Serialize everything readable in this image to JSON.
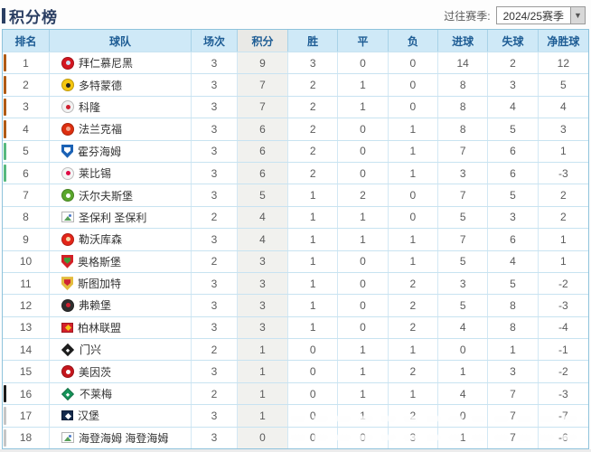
{
  "page": {
    "title": "积分榜"
  },
  "season_filter": {
    "label": "过往赛季:",
    "selected": "2024/25赛季",
    "arrow_icon": "▼"
  },
  "table": {
    "headers": [
      "排名",
      "球队",
      "场次",
      "积分",
      "胜",
      "平",
      "负",
      "进球",
      "失球",
      "净胜球"
    ],
    "zone_colors": {
      "champions_league": "#b05a14",
      "europe": "#57b97e",
      "relegation_playoff": "#1a1a1a",
      "relegation": "#c6c6c6"
    },
    "highlight_column": "积分",
    "rows": [
      {
        "rank": "1",
        "team": "拜仁慕尼黑",
        "played": "3",
        "points": "9",
        "won": "3",
        "drawn": "0",
        "lost": "0",
        "gf": "14",
        "ga": "2",
        "gd": "12",
        "marker": "#b05a14",
        "icon": {
          "shape": "circle",
          "c1": "#d31621",
          "c2": "#cfe0f5"
        }
      },
      {
        "rank": "2",
        "team": "多特蒙德",
        "played": "3",
        "points": "7",
        "won": "2",
        "drawn": "1",
        "lost": "0",
        "gf": "8",
        "ga": "3",
        "gd": "5",
        "marker": "#b05a14",
        "icon": {
          "shape": "circle",
          "c1": "#f5c610",
          "c2": "#222222"
        }
      },
      {
        "rank": "3",
        "team": "科隆",
        "played": "3",
        "points": "7",
        "won": "2",
        "drawn": "1",
        "lost": "0",
        "gf": "8",
        "ga": "4",
        "gd": "4",
        "marker": "#b05a14",
        "icon": {
          "shape": "circle",
          "c1": "#f2f2f2",
          "c2": "#cf2030"
        }
      },
      {
        "rank": "4",
        "team": "法兰克福",
        "played": "3",
        "points": "6",
        "won": "2",
        "drawn": "0",
        "lost": "1",
        "gf": "8",
        "ga": "5",
        "gd": "3",
        "marker": "#b05a14",
        "icon": {
          "shape": "circle",
          "c1": "#dd2f10",
          "c2": "#f3a58c"
        }
      },
      {
        "rank": "5",
        "team": "霍芬海姆",
        "played": "3",
        "points": "6",
        "won": "2",
        "drawn": "0",
        "lost": "1",
        "gf": "7",
        "ga": "6",
        "gd": "1",
        "marker": "#57b97e",
        "icon": {
          "shape": "shield",
          "c1": "#1b62b5",
          "c2": "#ffffff"
        }
      },
      {
        "rank": "6",
        "team": "莱比锡",
        "played": "3",
        "points": "6",
        "won": "2",
        "drawn": "0",
        "lost": "1",
        "gf": "3",
        "ga": "6",
        "gd": "-3",
        "marker": "#57b97e",
        "icon": {
          "shape": "circle",
          "c1": "#f5f5f5",
          "c2": "#e00a44"
        }
      },
      {
        "rank": "7",
        "team": "沃尔夫斯堡",
        "played": "3",
        "points": "5",
        "won": "1",
        "drawn": "2",
        "lost": "0",
        "gf": "7",
        "ga": "5",
        "gd": "2",
        "marker": null,
        "icon": {
          "shape": "circle",
          "c1": "#5aa72c",
          "c2": "#ffffff"
        }
      },
      {
        "rank": "8",
        "team": "圣保利 圣保利",
        "played": "2",
        "points": "4",
        "won": "1",
        "drawn": "1",
        "lost": "0",
        "gf": "5",
        "ga": "3",
        "gd": "2",
        "marker": null,
        "icon": {
          "shape": "broken"
        }
      },
      {
        "rank": "9",
        "team": "勒沃库森",
        "played": "3",
        "points": "4",
        "won": "1",
        "drawn": "1",
        "lost": "1",
        "gf": "7",
        "ga": "6",
        "gd": "1",
        "marker": null,
        "icon": {
          "shape": "circle",
          "c1": "#e32519",
          "c2": "#f5d9a8"
        }
      },
      {
        "rank": "10",
        "team": "奥格斯堡",
        "played": "2",
        "points": "3",
        "won": "1",
        "drawn": "0",
        "lost": "1",
        "gf": "5",
        "ga": "4",
        "gd": "1",
        "marker": null,
        "icon": {
          "shape": "shield",
          "c1": "#d22027",
          "c2": "#3f9c3a"
        }
      },
      {
        "rank": "11",
        "team": "斯图加特",
        "played": "3",
        "points": "3",
        "won": "1",
        "drawn": "0",
        "lost": "2",
        "gf": "3",
        "ga": "5",
        "gd": "-2",
        "marker": null,
        "icon": {
          "shape": "shield",
          "c1": "#e3bc3e",
          "c2": "#cf2433"
        }
      },
      {
        "rank": "12",
        "team": "弗赖堡",
        "played": "3",
        "points": "3",
        "won": "1",
        "drawn": "0",
        "lost": "2",
        "gf": "5",
        "ga": "8",
        "gd": "-3",
        "marker": null,
        "icon": {
          "shape": "circle",
          "c1": "#2e2e2e",
          "c2": "#d02030"
        }
      },
      {
        "rank": "13",
        "team": "柏林联盟",
        "played": "3",
        "points": "3",
        "won": "1",
        "drawn": "0",
        "lost": "2",
        "gf": "4",
        "ga": "8",
        "gd": "-4",
        "marker": null,
        "icon": {
          "shape": "square",
          "c1": "#d5212b",
          "c2": "#f2c418"
        }
      },
      {
        "rank": "14",
        "team": "门兴",
        "played": "2",
        "points": "1",
        "won": "0",
        "drawn": "1",
        "lost": "1",
        "gf": "0",
        "ga": "1",
        "gd": "-1",
        "marker": null,
        "icon": {
          "shape": "diamond",
          "c1": "#1f1f1f",
          "c2": "#ffffff"
        }
      },
      {
        "rank": "15",
        "team": "美因茨",
        "played": "3",
        "points": "1",
        "won": "0",
        "drawn": "1",
        "lost": "2",
        "gf": "1",
        "ga": "3",
        "gd": "-2",
        "marker": null,
        "icon": {
          "shape": "circle",
          "c1": "#c5161d",
          "c2": "#ffffff"
        }
      },
      {
        "rank": "16",
        "team": "不莱梅",
        "played": "2",
        "points": "1",
        "won": "0",
        "drawn": "1",
        "lost": "1",
        "gf": "4",
        "ga": "7",
        "gd": "-3",
        "marker": "#1a1a1a",
        "icon": {
          "shape": "diamond",
          "c1": "#16945a",
          "c2": "#ffffff"
        }
      },
      {
        "rank": "17",
        "team": "汉堡",
        "played": "3",
        "points": "1",
        "won": "0",
        "drawn": "1",
        "lost": "2",
        "gf": "0",
        "ga": "7",
        "gd": "-7",
        "marker": "#c6c6c6",
        "icon": {
          "shape": "square",
          "c1": "#13294b",
          "c2": "#ffffff"
        }
      },
      {
        "rank": "18",
        "team": "海登海姆 海登海姆",
        "played": "3",
        "points": "0",
        "won": "0",
        "drawn": "0",
        "lost": "3",
        "gf": "1",
        "ga": "7",
        "gd": "-6",
        "marker": "#c6c6c6",
        "icon": {
          "shape": "broken"
        }
      }
    ]
  }
}
